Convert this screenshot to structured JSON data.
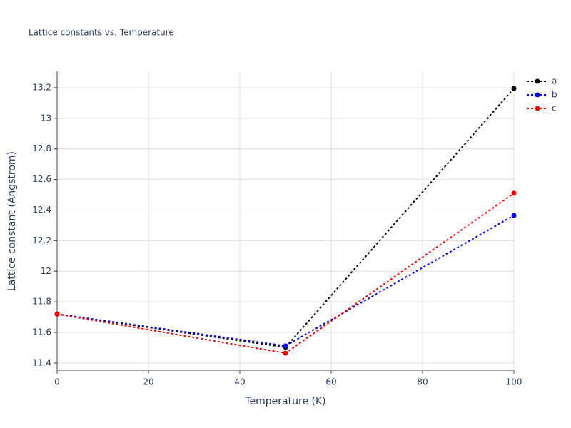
{
  "chart_data": {
    "type": "line",
    "title": "Lattice constants vs. Temperature",
    "x_label": "Temperature (K)",
    "y_label": "Lattice constant (Angstrom)",
    "x": [
      0,
      50,
      100
    ],
    "series": [
      {
        "name": "a",
        "color": "#000000",
        "values": [
          11.72,
          11.503,
          13.195
        ]
      },
      {
        "name": "b",
        "color": "#0000ff",
        "values": [
          11.72,
          11.512,
          12.365
        ]
      },
      {
        "name": "c",
        "color": "#ff0000",
        "values": [
          11.72,
          11.465,
          12.51
        ]
      }
    ],
    "xlim": [
      0,
      100
    ],
    "xticks": [
      0,
      20,
      40,
      60,
      80,
      100
    ],
    "ylim": [
      11.353,
      13.307
    ],
    "yticks": [
      11.4,
      11.6,
      11.8,
      12,
      12.2,
      12.4,
      12.6,
      12.8,
      13,
      13.2
    ],
    "grid": true,
    "line_style": "dotted",
    "legend": "right"
  }
}
